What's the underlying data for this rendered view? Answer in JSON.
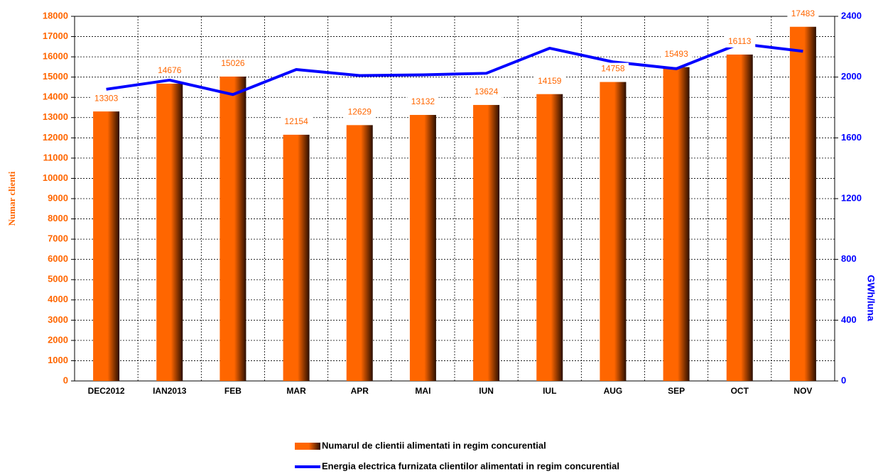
{
  "chart_data": {
    "type": "bar",
    "categories": [
      "DEC2012",
      "IAN2013",
      "FEB",
      "MAR",
      "APR",
      "MAI",
      "IUN",
      "IUL",
      "AUG",
      "SEP",
      "OCT",
      "NOV"
    ],
    "series": [
      {
        "name": "Numarul de clientii alimentati in regim concurential",
        "color": "#ff6600",
        "type": "bar",
        "values": [
          13303,
          14676,
          15026,
          12154,
          12629,
          13132,
          13624,
          14159,
          14758,
          15493,
          16113,
          17483
        ]
      },
      {
        "name": "Energia electrica furnizata clientilor alimentati in regim concurential",
        "color": "#0000ff",
        "type": "line",
        "axis": "y2",
        "values": [
          1920,
          1980,
          1885,
          2050,
          2010,
          2015,
          2025,
          2190,
          2100,
          2055,
          2220,
          2170
        ]
      }
    ],
    "ylabel": "Numar clienti",
    "y2label": "GWh/luna",
    "ylim": [
      0,
      18000
    ],
    "yticks": [
      0,
      1000,
      2000,
      3000,
      4000,
      5000,
      6000,
      7000,
      8000,
      9000,
      10000,
      11000,
      12000,
      13000,
      14000,
      15000,
      16000,
      17000,
      18000
    ],
    "y2lim": [
      0,
      2400
    ],
    "y2ticks": [
      0,
      400,
      800,
      1200,
      1600,
      2000,
      2400
    ],
    "grid": true
  }
}
